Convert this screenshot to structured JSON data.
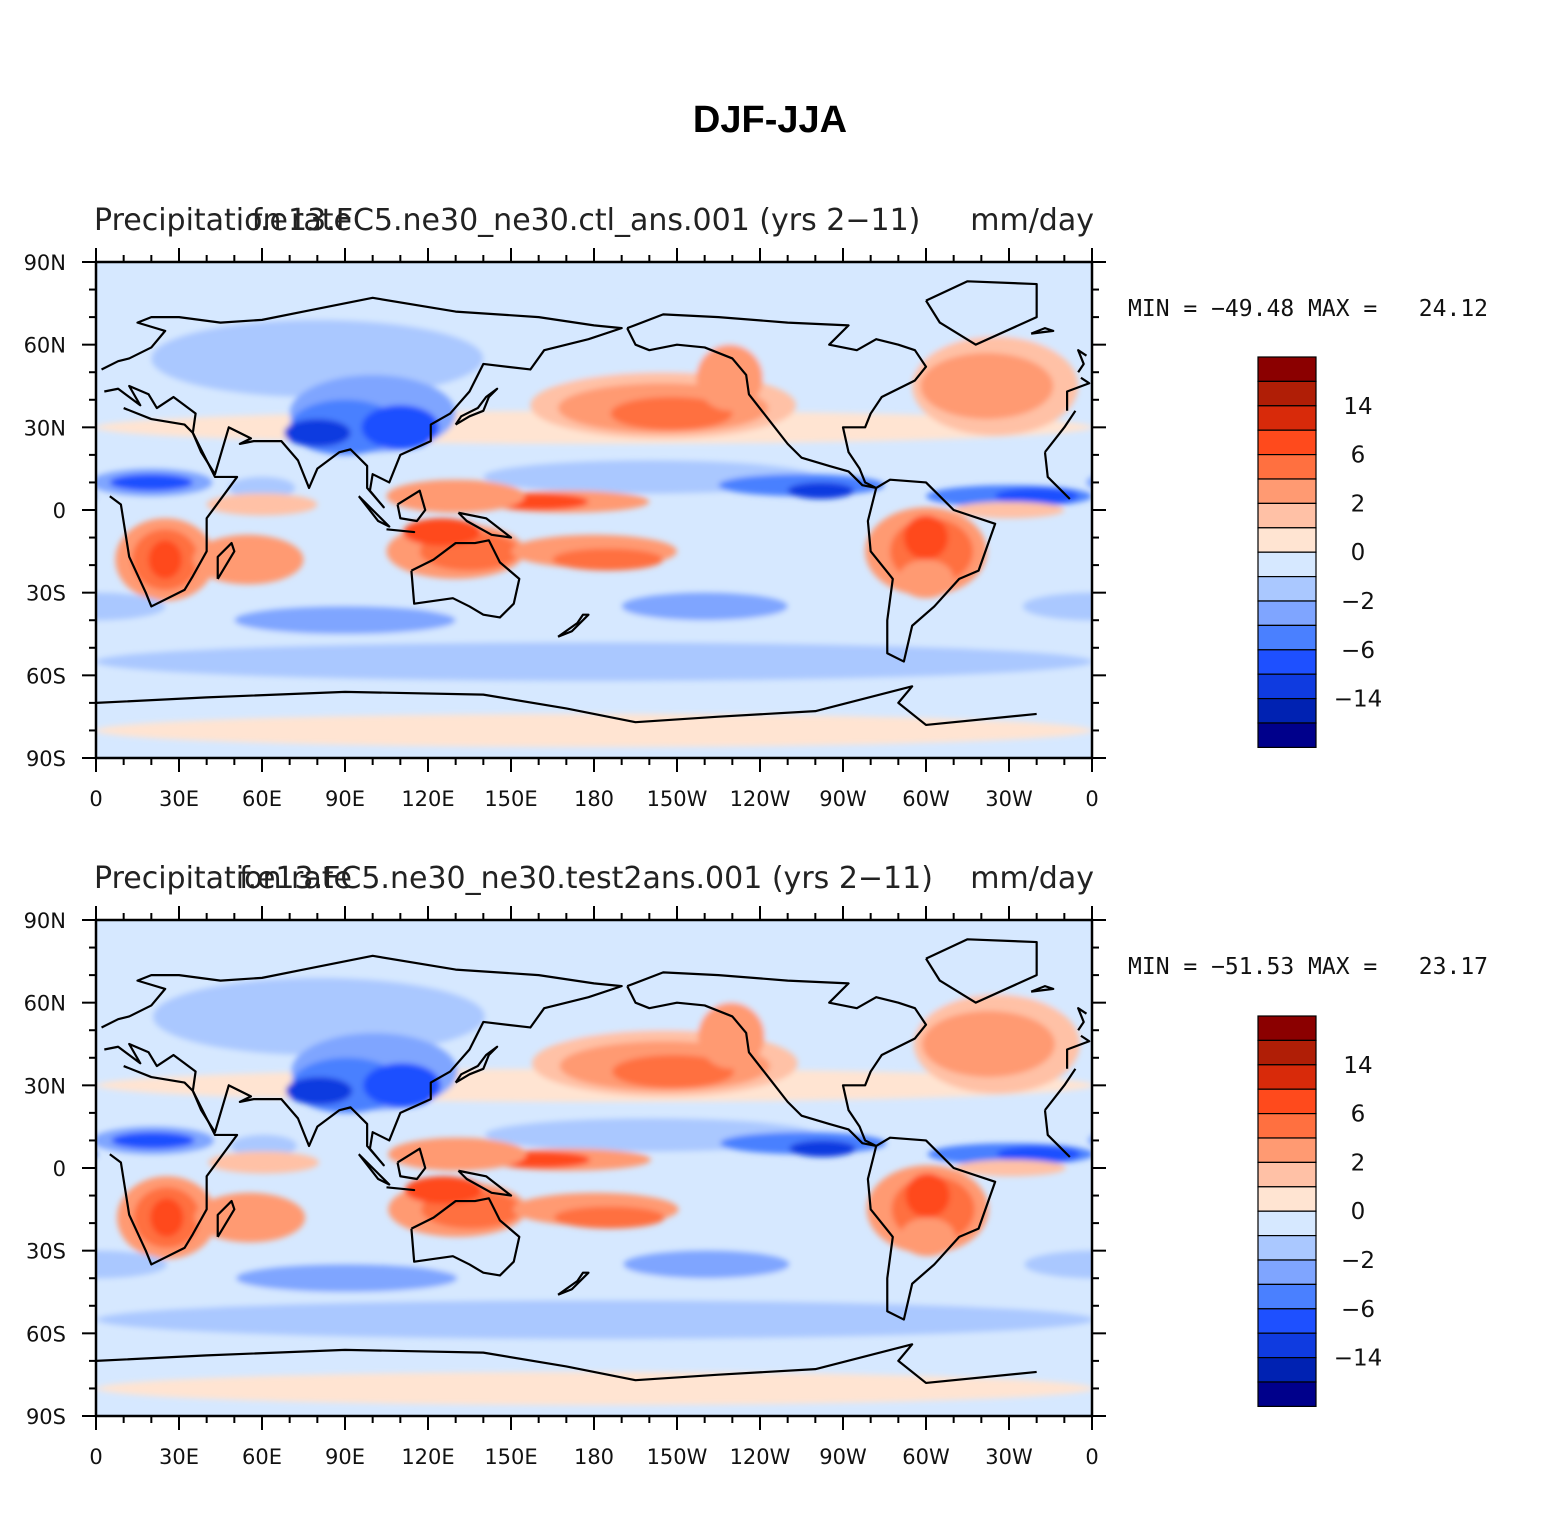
{
  "figure": {
    "title": "DJF-JJA"
  },
  "palette": {
    "levels": [
      "-14",
      "-6",
      "-2",
      "0",
      "2",
      "6",
      "14"
    ],
    "colors": [
      "#00008b",
      "#0022b2",
      "#0f3be0",
      "#1e50ff",
      "#4a80ff",
      "#7fa5ff",
      "#aac8ff",
      "#d6e8ff",
      "#ffe4d2",
      "#ffc1a6",
      "#ff9a72",
      "#ff7040",
      "#ff4a1c",
      "#d82a0a",
      "#b01e06",
      "#8b0000"
    ],
    "ocean": "#d6e8ff",
    "coast": "#000000"
  },
  "axes": {
    "lon_labels": [
      "0",
      "30E",
      "60E",
      "90E",
      "120E",
      "150E",
      "180",
      "150W",
      "120W",
      "90W",
      "60W",
      "30W",
      "0"
    ],
    "lat_labels": [
      "90N",
      "60N",
      "30N",
      "0",
      "30S",
      "60S",
      "90S"
    ]
  },
  "panels": [
    {
      "case_name": "f.e13.FC5.ne30_ne30.ctl_ans.001 (yrs 2-11)",
      "var_name": "Precipitation rate",
      "units": "mm/day",
      "stats": "MIN = −49.48 MAX =   24.12"
    },
    {
      "case_name": "f.e13.FC5.ne30_ne30.test2ans.001 (yrs 2-11)",
      "var_name": "Precipitation rate",
      "units": "mm/day",
      "stats": "MIN = −51.53 MAX =   23.17"
    }
  ]
}
